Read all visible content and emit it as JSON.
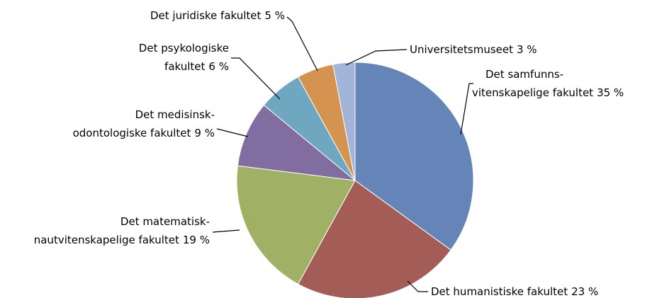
{
  "chart_data": {
    "type": "pie",
    "categories": [
      "Det samfunns-\nvitenskapelige fakultet",
      "Det humanistiske fakultet",
      "Det matematisk-\nnautvitenskapelige fakultet",
      "Det medisinsk-\nodontologiske fakultet",
      "Det psykologiske\nfakultet",
      "Det juridiske fakultet",
      "Universitetsmuseet"
    ],
    "values": [
      35,
      23,
      19,
      9,
      6,
      5,
      3
    ],
    "value_labels": [
      "35 %",
      "23 %",
      "19 %",
      "9 %",
      "6 %",
      "5 %",
      "3 %"
    ],
    "colors": [
      "#6585b8",
      "#a45d56",
      "#a0b165",
      "#816da0",
      "#6ea7bf",
      "#d4944f",
      "#a2b5d9"
    ]
  }
}
